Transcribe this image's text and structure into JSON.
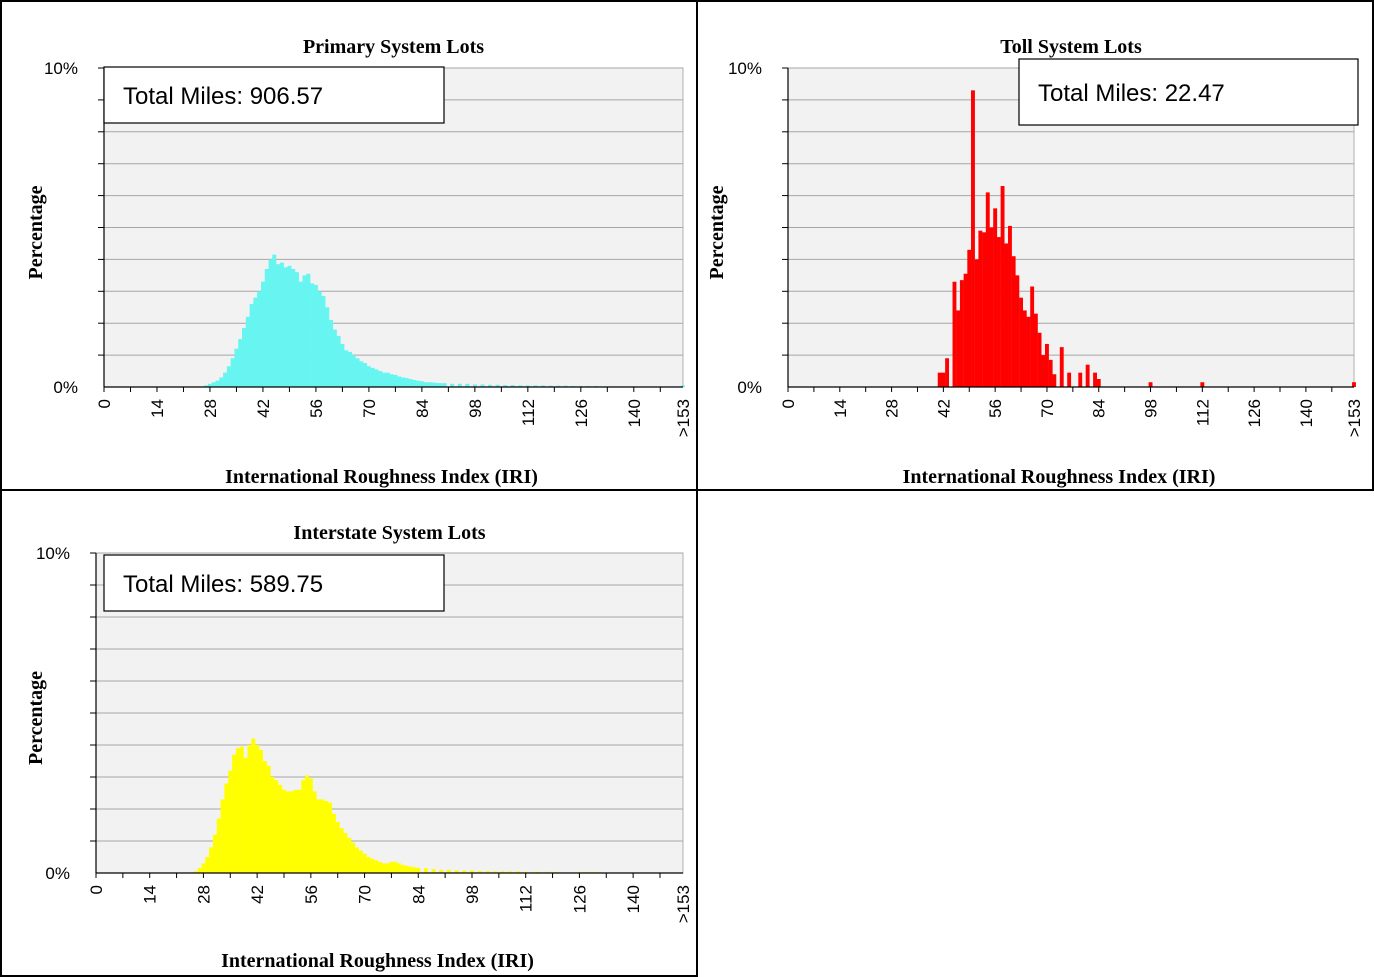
{
  "colors": {
    "primary_bars": "#66f5f0",
    "toll_bars": "#ff0000",
    "interstate_bars": "#ffff00",
    "plot_bg": "#f2f2f2",
    "grid": "#a6a6a6"
  },
  "chart_data": [
    {
      "type": "bar",
      "title": "Primary System Lots",
      "xlabel": "International Roughness Index (IRI)",
      "ylabel": "Percentage",
      "ylim": [
        0,
        10
      ],
      "y_tick_labels": [
        "0%",
        "10%"
      ],
      "x_tick_labels": [
        "0",
        "14",
        "28",
        "42",
        "56",
        "70",
        "84",
        "98",
        "112",
        "126",
        "140",
        ">153"
      ],
      "annotation": "Total Miles: 906.57",
      "grid": true,
      "x": [
        27,
        28,
        29,
        30,
        31,
        32,
        33,
        34,
        35,
        36,
        37,
        38,
        39,
        40,
        41,
        42,
        43,
        44,
        45,
        46,
        47,
        48,
        49,
        50,
        51,
        52,
        53,
        54,
        55,
        56,
        57,
        58,
        59,
        60,
        61,
        62,
        63,
        64,
        65,
        66,
        67,
        68,
        69,
        70,
        71,
        72,
        73,
        74,
        75,
        76,
        77,
        78,
        79,
        80,
        81,
        82,
        83,
        84,
        85,
        86,
        87,
        88,
        89,
        90,
        92,
        94,
        96,
        98,
        100,
        102,
        104,
        106,
        108,
        110,
        112,
        114,
        116,
        118,
        120,
        122,
        124,
        126,
        128,
        130,
        135,
        140,
        153
      ],
      "values": [
        0.05,
        0.1,
        0.15,
        0.2,
        0.3,
        0.45,
        0.65,
        0.9,
        1.2,
        1.5,
        1.85,
        2.2,
        2.6,
        2.8,
        3.0,
        3.3,
        3.7,
        4.0,
        4.15,
        3.85,
        3.9,
        3.75,
        3.8,
        3.7,
        3.6,
        3.3,
        3.5,
        3.55,
        3.25,
        3.2,
        3.0,
        2.85,
        2.5,
        2.1,
        1.8,
        1.6,
        1.35,
        1.15,
        1.1,
        1.0,
        0.9,
        0.8,
        0.75,
        0.65,
        0.6,
        0.55,
        0.5,
        0.45,
        0.45,
        0.4,
        0.38,
        0.33,
        0.3,
        0.28,
        0.25,
        0.22,
        0.2,
        0.18,
        0.15,
        0.15,
        0.14,
        0.13,
        0.12,
        0.12,
        0.1,
        0.1,
        0.1,
        0.08,
        0.08,
        0.07,
        0.07,
        0.06,
        0.06,
        0.05,
        0.05,
        0.05,
        0.05,
        0.04,
        0.04,
        0.04,
        0.03,
        0.03,
        0.03,
        0.03,
        0.02,
        0.02,
        0.05
      ]
    },
    {
      "type": "bar",
      "title": "Toll System Lots",
      "xlabel": "International Roughness Index (IRI)",
      "ylabel": "Percentage",
      "ylim": [
        0,
        10
      ],
      "y_tick_labels": [
        "0%",
        "10%"
      ],
      "x_tick_labels": [
        "0",
        "14",
        "28",
        "42",
        "56",
        "70",
        "84",
        "98",
        "112",
        "126",
        "140",
        ">153"
      ],
      "annotation": "Total Miles: 22.47",
      "grid": true,
      "x": [
        41,
        42,
        43,
        44,
        45,
        46,
        47,
        48,
        49,
        50,
        51,
        52,
        53,
        54,
        55,
        56,
        57,
        58,
        59,
        60,
        61,
        62,
        63,
        64,
        65,
        66,
        67,
        68,
        69,
        70,
        71,
        72,
        73,
        74,
        76,
        79,
        81,
        83,
        84,
        98,
        112,
        153
      ],
      "values": [
        0.45,
        0.45,
        0.9,
        0.0,
        3.3,
        2.4,
        3.35,
        3.55,
        4.3,
        9.3,
        4.0,
        4.9,
        4.85,
        6.1,
        5.0,
        5.6,
        4.7,
        6.3,
        4.5,
        5.05,
        4.1,
        3.5,
        2.8,
        2.4,
        2.2,
        3.15,
        2.3,
        1.7,
        1.0,
        1.35,
        0.85,
        0.4,
        0.0,
        1.25,
        0.45,
        0.45,
        0.7,
        0.45,
        0.25,
        0.15,
        0.15,
        0.15
      ]
    },
    {
      "type": "bar",
      "title": "Interstate System Lots",
      "xlabel": "International Roughness Index (IRI)",
      "ylabel": "Percentage",
      "ylim": [
        0,
        10
      ],
      "y_tick_labels": [
        "0%",
        "10%"
      ],
      "x_tick_labels": [
        "0",
        "14",
        "28",
        "42",
        "56",
        "70",
        "84",
        "98",
        "112",
        "126",
        "140",
        ">153"
      ],
      "annotation": "Total Miles: 589.75",
      "grid": true,
      "x": [
        26,
        27,
        28,
        29,
        30,
        31,
        32,
        33,
        34,
        35,
        36,
        37,
        38,
        39,
        40,
        41,
        42,
        43,
        44,
        45,
        46,
        47,
        48,
        49,
        50,
        51,
        52,
        53,
        54,
        55,
        56,
        57,
        58,
        59,
        60,
        61,
        62,
        63,
        64,
        65,
        66,
        67,
        68,
        69,
        70,
        71,
        72,
        73,
        74,
        75,
        76,
        77,
        78,
        79,
        80,
        81,
        82,
        83,
        84,
        86,
        88,
        90,
        92,
        94,
        96,
        98,
        100,
        102,
        104,
        106,
        108,
        110,
        112,
        115,
        118,
        120,
        126,
        128,
        130,
        134,
        140
      ],
      "values": [
        0.05,
        0.15,
        0.3,
        0.5,
        0.8,
        1.2,
        1.7,
        2.3,
        2.8,
        3.2,
        3.7,
        3.9,
        3.95,
        3.6,
        4.0,
        4.2,
        4.0,
        3.85,
        3.5,
        3.35,
        3.0,
        2.9,
        2.75,
        2.6,
        2.55,
        2.55,
        2.6,
        2.6,
        2.9,
        3.05,
        2.95,
        2.55,
        2.3,
        2.3,
        2.25,
        2.2,
        1.85,
        1.6,
        1.4,
        1.25,
        1.1,
        0.95,
        0.8,
        0.7,
        0.6,
        0.5,
        0.45,
        0.4,
        0.35,
        0.3,
        0.3,
        0.35,
        0.35,
        0.3,
        0.25,
        0.22,
        0.2,
        0.18,
        0.16,
        0.15,
        0.12,
        0.1,
        0.1,
        0.08,
        0.08,
        0.08,
        0.06,
        0.06,
        0.05,
        0.05,
        0.05,
        0.05,
        0.04,
        0.04,
        0.04,
        0.03,
        0.03,
        0.03,
        0.03,
        0.02,
        0.02
      ]
    }
  ]
}
